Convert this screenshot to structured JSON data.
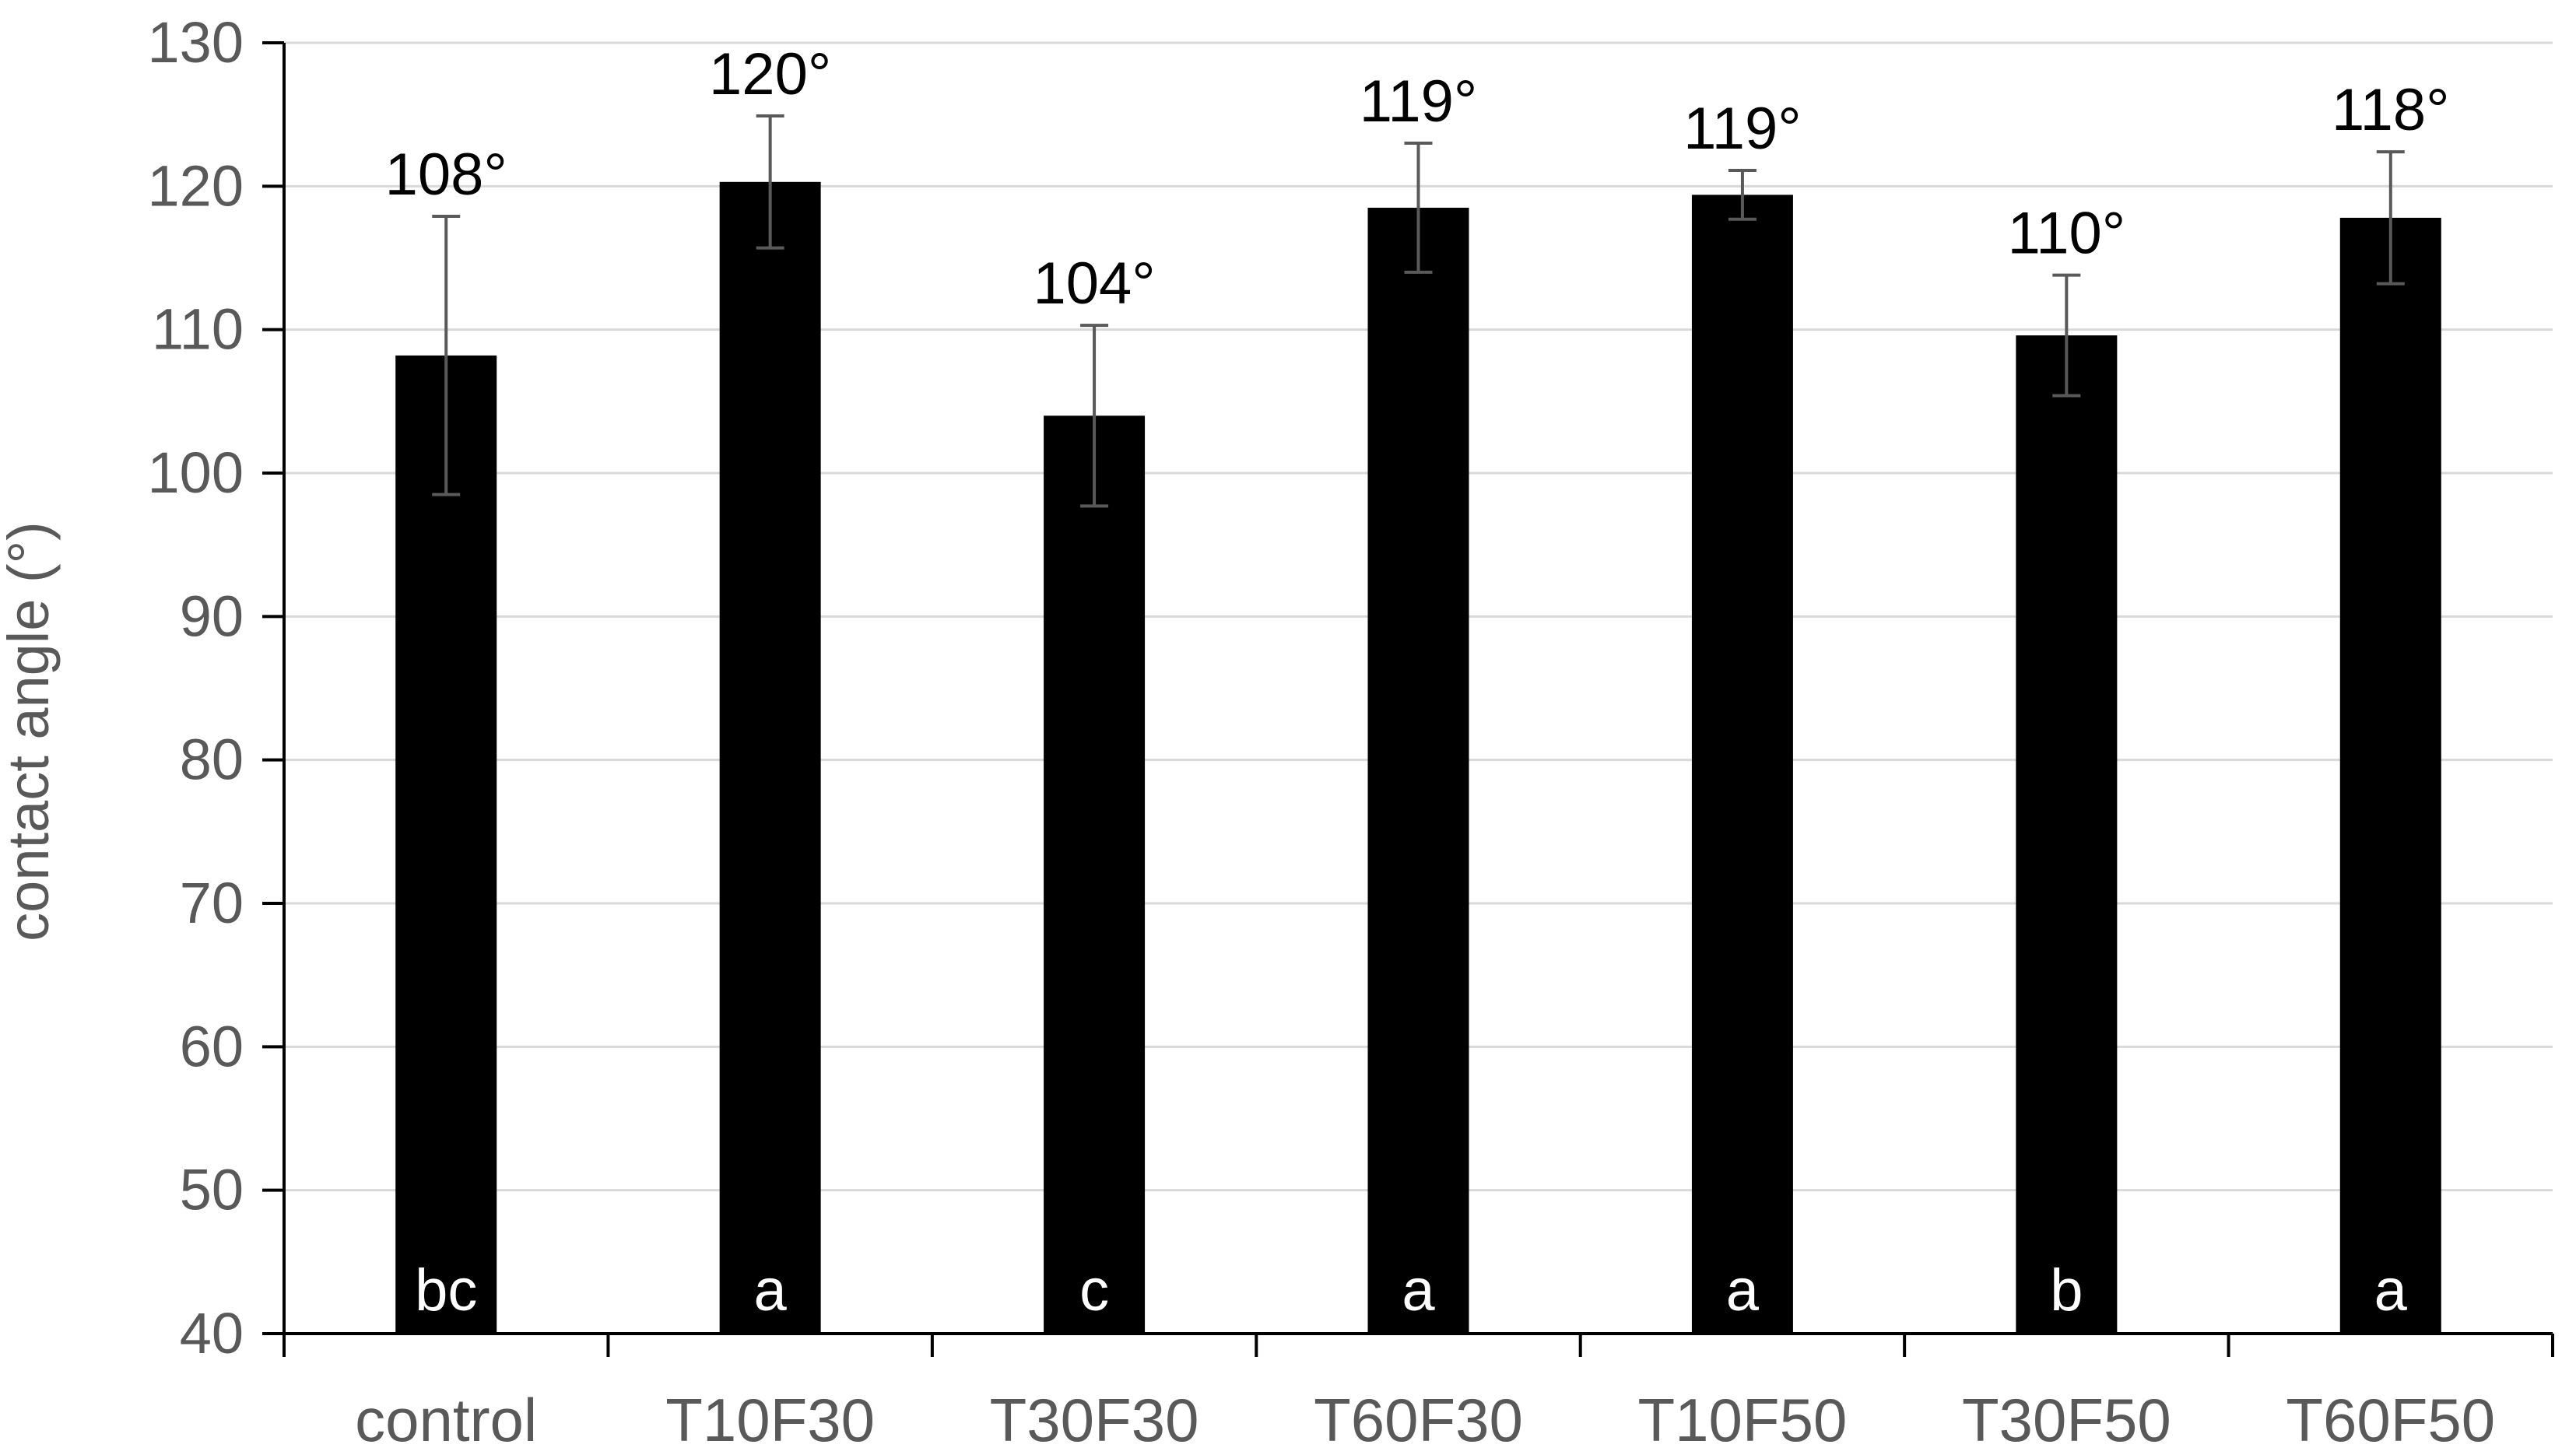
{
  "colors": {
    "bar": "#000000",
    "gridline": "#d9d9d9",
    "axis": "#000000",
    "error_bar": "#595959",
    "tick_text": "#595959",
    "value_text": "#000000",
    "group_letter_text": "#ffffff"
  },
  "chart_data": {
    "type": "bar",
    "title": "",
    "xlabel": "",
    "ylabel": "contact angle (°)",
    "ylim": [
      40,
      130
    ],
    "yticks": [
      40,
      50,
      60,
      70,
      80,
      90,
      100,
      110,
      120,
      130
    ],
    "grid": "horizontal",
    "categories": [
      "control",
      "T10F30",
      "T30F30",
      "T60F30",
      "T10F50",
      "T30F50",
      "T60F50"
    ],
    "values": [
      108.2,
      120.3,
      104.0,
      118.5,
      119.4,
      109.6,
      117.8
    ],
    "error": [
      9.7,
      4.6,
      6.3,
      4.5,
      1.7,
      4.2,
      4.6
    ],
    "value_labels": [
      "108°",
      "120°",
      "104°",
      "119°",
      "119°",
      "110°",
      "118°"
    ],
    "group_letters": [
      "bc",
      "a",
      "c",
      "a",
      "a",
      "b",
      "a"
    ]
  }
}
